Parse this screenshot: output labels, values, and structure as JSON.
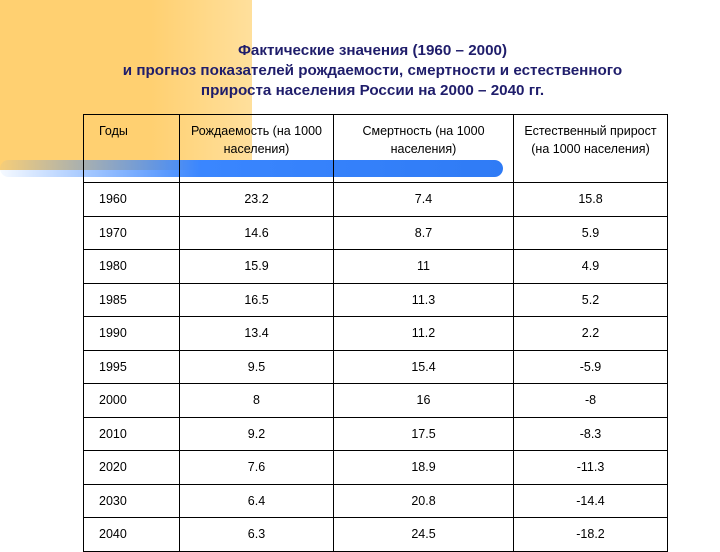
{
  "title": {
    "lines": [
      "Фактические значения (1960 – 2000)",
      "и прогноз показателей рождаемости, смертности и  естественного",
      "прироста населения  России на 2000 – 2040 гг."
    ]
  },
  "table": {
    "headers": [
      "Годы",
      "Рождаемость (на 1000 населения)",
      "Смертность (на 1000 населения)",
      "Естественный прирост (на 1000 населения)"
    ],
    "rows": [
      [
        "1960",
        "23.2",
        "7.4",
        "15.8"
      ],
      [
        "1970",
        "14.6",
        "8.7",
        "5.9"
      ],
      [
        "1980",
        "15.9",
        "11",
        "4.9"
      ],
      [
        "1985",
        "16.5",
        "11.3",
        "5.2"
      ],
      [
        "1990",
        "13.4",
        "11.2",
        "2.2"
      ],
      [
        "1995",
        "9.5",
        "15.4",
        "-5.9"
      ],
      [
        "2000",
        "8",
        "16",
        "-8"
      ],
      [
        "2010",
        "9.2",
        "17.5",
        "-8.3"
      ],
      [
        "2020",
        "7.6",
        "18.9",
        "-11.3"
      ],
      [
        "2030",
        "6.4",
        "20.8",
        "-14.4"
      ],
      [
        "2040",
        "6.3",
        "24.5",
        "-18.2"
      ]
    ]
  },
  "colors": {
    "title_text": "#1F1D6B",
    "corner_block": "#FFD071",
    "accent_line": "#3A86FF"
  }
}
